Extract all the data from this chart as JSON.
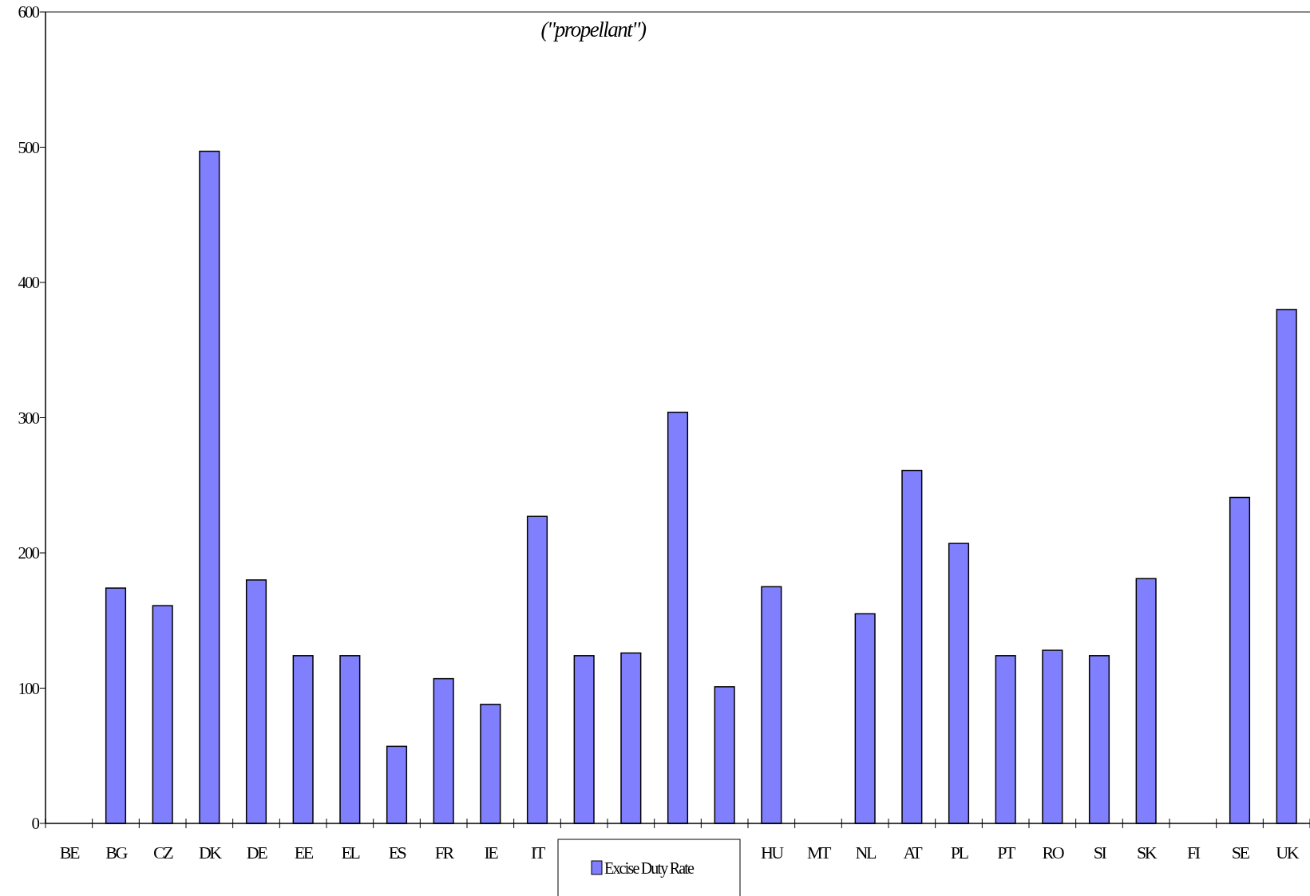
{
  "chart_data": {
    "type": "bar",
    "title": "(\"propellant\")",
    "categories": [
      "BE",
      "BG",
      "CZ",
      "DK",
      "DE",
      "EE",
      "EL",
      "ES",
      "FR",
      "IE",
      "IT",
      null,
      null,
      null,
      null,
      "HU",
      "MT",
      "NL",
      "AT",
      "PL",
      "PT",
      "RO",
      "SI",
      "SK",
      "FI",
      "SE",
      "UK"
    ],
    "series": [
      {
        "name": "Excise Duty Rate",
        "color": "#8080ff",
        "values": [
          null,
          174,
          161,
          497,
          180,
          124,
          124,
          57,
          107,
          88,
          227,
          124,
          126,
          304,
          101,
          175,
          null,
          155,
          261,
          207,
          124,
          128,
          124,
          181,
          null,
          241,
          380
        ]
      }
    ],
    "ylim": [
      0,
      600
    ],
    "yticks": [
      0,
      100,
      200,
      300,
      400,
      500,
      600
    ],
    "grid": false,
    "legend": "bottom"
  }
}
